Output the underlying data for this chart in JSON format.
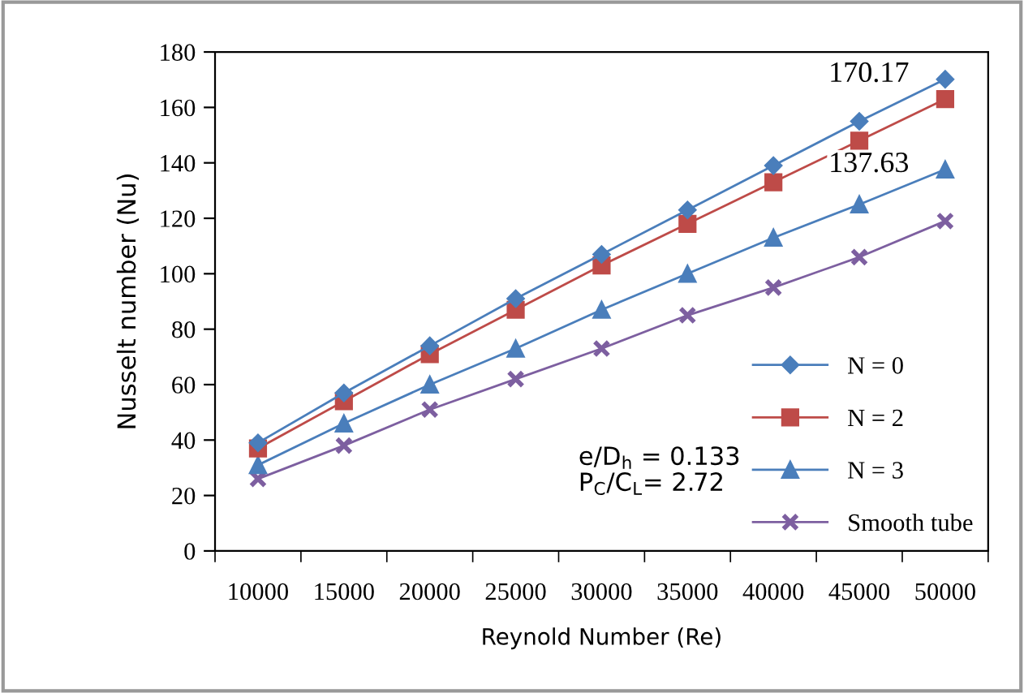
{
  "chart_data": {
    "type": "line",
    "xlabel": "Reynold Number (Re)",
    "ylabel": "Nusselt number (Nu)",
    "categories": [
      "10000",
      "15000",
      "20000",
      "25000",
      "30000",
      "35000",
      "40000",
      "45000",
      "50000"
    ],
    "series": [
      {
        "name": "N = 0",
        "color": "#4a7ebb",
        "marker": "diamond",
        "values": [
          39,
          57,
          74,
          91,
          107,
          123,
          139,
          155,
          170.17
        ]
      },
      {
        "name": "N = 2",
        "color": "#be4b48",
        "marker": "square",
        "values": [
          37,
          54,
          71,
          87,
          103,
          118,
          133,
          148,
          163
        ]
      },
      {
        "name": "N = 3",
        "color": "#4a7ebb",
        "marker": "triangle",
        "values": [
          31,
          46,
          60,
          73,
          87,
          100,
          113,
          125,
          137.63
        ]
      },
      {
        "name": "Smooth tube",
        "color": "#7d5fa0",
        "marker": "cross",
        "values": [
          26,
          38,
          51,
          62,
          73,
          85,
          95,
          106,
          119
        ]
      }
    ],
    "ylim": [
      0,
      180
    ],
    "yticks": [
      0,
      20,
      40,
      60,
      80,
      100,
      120,
      140,
      160,
      180
    ],
    "grid": false,
    "legend": "bottom right",
    "annotations": [
      {
        "text": "170.17",
        "x": "50000",
        "y": 170.17
      },
      {
        "text": "137.63",
        "x": "50000",
        "y": 137.63
      },
      "e/D$_{h}$ = 0.133",
      "P$_{C}$/C$_{L}$= 2.72"
    ]
  }
}
